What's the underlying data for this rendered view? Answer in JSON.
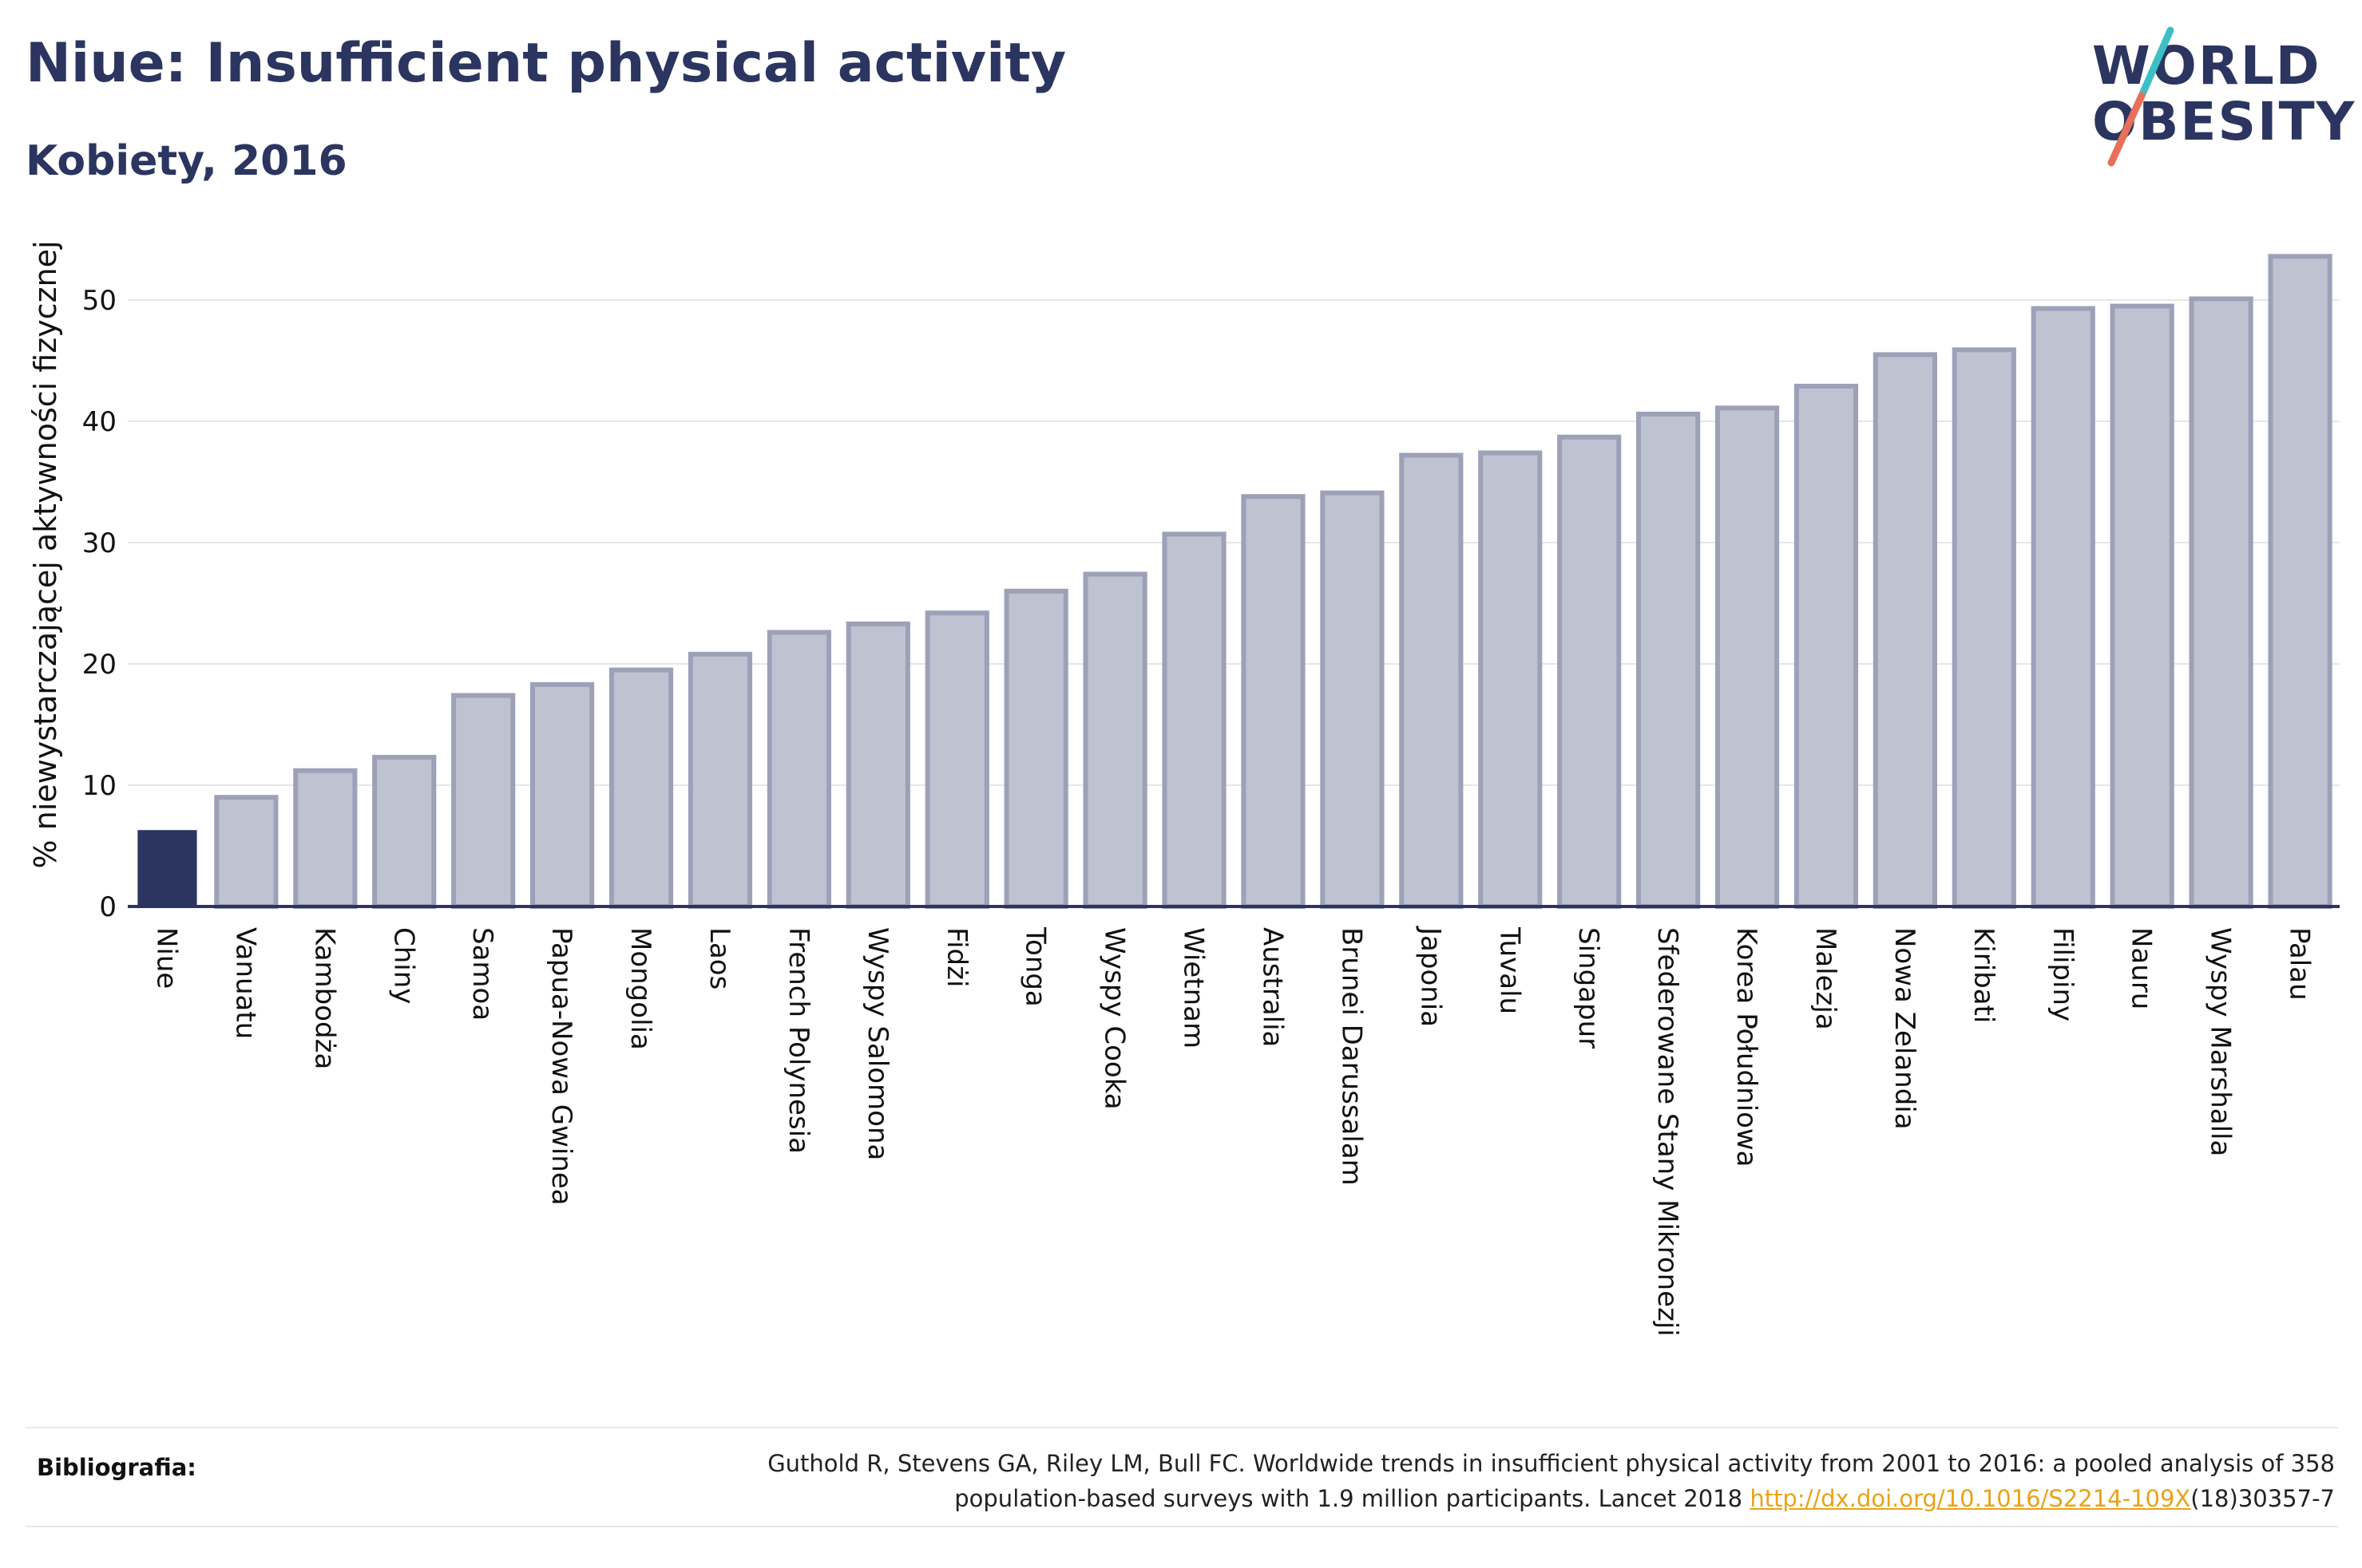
{
  "header": {
    "title": "Niue: Insufficient physical activity",
    "subtitle": "Kobiety, 2016"
  },
  "logo": {
    "line1": "WORLD",
    "line2": "OBESITY",
    "slash_colors": [
      "#3cc0c5",
      "#e8705a"
    ]
  },
  "colors": {
    "highlight_bar": "#2b3560",
    "bar_fill": "#bfc2d0",
    "bar_stroke": "#9da1b8",
    "axis": "#2b3560",
    "grid": "#e6e6e6"
  },
  "chart_data": {
    "type": "bar",
    "title": "Niue: Insufficient physical activity",
    "subtitle": "Kobiety, 2016",
    "xlabel": "",
    "ylabel": "% niewystarczającej aktywności fizycznej",
    "ylim": [
      0,
      55
    ],
    "yticks": [
      0,
      10,
      20,
      30,
      40,
      50
    ],
    "grid": true,
    "highlight": "Niue",
    "categories": [
      "Niue",
      "Vanuatu",
      "Kambodża",
      "Chiny",
      "Samoa",
      "Papua-Nowa Gwinea",
      "Mongolia",
      "Laos",
      "French Polynesia",
      "Wyspy Salomona",
      "Fidżi",
      "Tonga",
      "Wyspy Cooka",
      "Wietnam",
      "Australia",
      "Brunei Darussalam",
      "Japonia",
      "Tuvalu",
      "Singapur",
      "Sfederowane Stany Mikronezji",
      "Korea Południowa",
      "Malezja",
      "Nowa Zelandia",
      "Kiribati",
      "Filipiny",
      "Nauru",
      "Wyspy Marshalla",
      "Palau"
    ],
    "values": [
      6.3,
      9.0,
      11.2,
      12.3,
      17.4,
      18.3,
      19.5,
      20.8,
      22.6,
      23.3,
      24.2,
      26.0,
      27.4,
      30.7,
      33.8,
      34.1,
      37.2,
      37.4,
      38.7,
      40.6,
      41.1,
      42.9,
      45.5,
      45.9,
      49.3,
      49.5,
      50.1,
      53.6
    ]
  },
  "footer": {
    "label": "Bibliografia:",
    "citation_line1": "Guthold R, Stevens GA, Riley LM, Bull FC. Worldwide trends in insufficient physical activity from 2001 to 2016: a pooled analysis of 358",
    "citation_line2_pre": "population-based surveys with 1.9 million participants. Lancet 2018 ",
    "citation_link": "http://dx.doi.org/10.1016/S2214-109X",
    "citation_line2_post": "(18)30357-7"
  }
}
